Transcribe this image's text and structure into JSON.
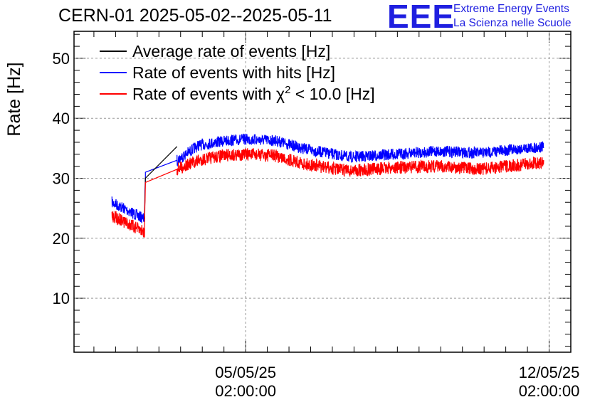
{
  "header": {
    "title": "CERN-01 2025-05-02--2025-05-11",
    "logo_letters": "EEE",
    "logo_line1": "Extreme Energy Events",
    "logo_line2": "La Scienza nelle Scuole",
    "logo_color": "#1f1fe0"
  },
  "chart_data": {
    "type": "line",
    "title": "CERN-01 2025-05-02--2025-05-11",
    "ylabel": "Rate [Hz]",
    "xlabel": "",
    "ylim": [
      1,
      54.5
    ],
    "y_ticks": [
      "10",
      "20",
      "30",
      "40",
      "50"
    ],
    "x_ticks": [
      {
        "date": "05/05/25",
        "time": "02:00:00"
      },
      {
        "date": "12/05/25",
        "time": "02:00:00"
      }
    ],
    "xlim_days": [
      "2025-05-01 03:00",
      "2025-05-12 14:00"
    ],
    "grid": true,
    "legend_position": "top-left",
    "legend": [
      {
        "label": "Average rate of events [Hz]",
        "color": "#000000"
      },
      {
        "label": "Rate of events with hits [Hz]",
        "color": "#0000ff"
      },
      {
        "label_prefix": "Rate of events with ",
        "label_symbol": "χ",
        "label_sup": "2",
        "label_suffix": " < 10.0 [Hz]",
        "color": "#ff0000"
      }
    ],
    "series": [
      {
        "name": "Rate of events with hits [Hz]",
        "color": "#0000ff",
        "x": [
          "2025-05-02 00:00",
          "2025-05-02 18:00",
          "2025-05-02 18:30",
          "2025-05-03 12:00",
          "2025-05-04 00:00",
          "2025-05-04 14:00",
          "2025-05-05 02:00",
          "2025-05-05 18:00",
          "2025-05-06 12:00",
          "2025-05-07 12:00",
          "2025-05-08 12:00",
          "2025-05-09 12:00",
          "2025-05-10 12:00",
          "2025-05-11 12:00",
          "2025-05-11 23:00"
        ],
        "values": [
          26.0,
          23.2,
          31.0,
          33.0,
          35.5,
          36.2,
          36.5,
          36.3,
          34.8,
          33.5,
          34.0,
          34.5,
          34.2,
          35.0,
          35.2
        ]
      },
      {
        "name": "Average rate of events [Hz]",
        "color": "#000000",
        "x": [
          "2025-05-02 18:00",
          "2025-05-02 18:30",
          "2025-05-03 12:00"
        ],
        "values": [
          23.2,
          30.0,
          35.3
        ]
      },
      {
        "name": "Rate of events with χ² < 10.0 [Hz]",
        "color": "#ff0000",
        "x": [
          "2025-05-02 00:00",
          "2025-05-02 18:00",
          "2025-05-02 18:30",
          "2025-05-03 12:00",
          "2025-05-04 00:00",
          "2025-05-04 14:00",
          "2025-05-05 02:00",
          "2025-05-05 18:00",
          "2025-05-06 12:00",
          "2025-05-07 12:00",
          "2025-05-08 12:00",
          "2025-05-09 12:00",
          "2025-05-10 12:00",
          "2025-05-11 12:00",
          "2025-05-11 23:00"
        ],
        "values": [
          23.8,
          21.0,
          29.3,
          31.5,
          33.0,
          33.8,
          34.0,
          33.8,
          32.3,
          31.2,
          31.8,
          32.0,
          31.5,
          32.3,
          32.6
        ]
      }
    ]
  }
}
